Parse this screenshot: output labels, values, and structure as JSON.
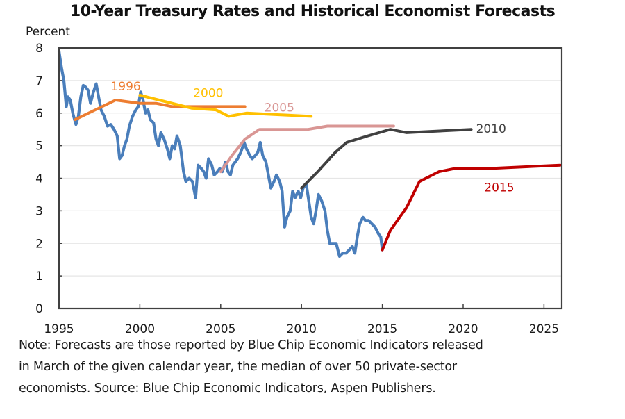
{
  "chart_data": {
    "type": "line",
    "title": "10-Year Treasury Rates and Historical Economist Forecasts",
    "xlabel": "",
    "ylabel": "Percent",
    "xlim": [
      1995,
      2026.1
    ],
    "ylim": [
      0,
      8
    ],
    "x_ticks": [
      1995,
      2000,
      2005,
      2010,
      2015,
      2020,
      2025
    ],
    "y_ticks": [
      0,
      1,
      2,
      3,
      4,
      5,
      6,
      7,
      8
    ],
    "grid": "horizontal",
    "legend": "inline labels",
    "series": [
      {
        "name": "10-Year Treasury Rate",
        "color": "#4A7EBB",
        "label": "",
        "points": [
          [
            1995.0,
            7.9
          ],
          [
            1995.15,
            7.4
          ],
          [
            1995.3,
            7.0
          ],
          [
            1995.45,
            6.2
          ],
          [
            1995.55,
            6.5
          ],
          [
            1995.7,
            6.4
          ],
          [
            1995.85,
            6.0
          ],
          [
            1996.05,
            5.65
          ],
          [
            1996.2,
            5.9
          ],
          [
            1996.35,
            6.5
          ],
          [
            1996.5,
            6.85
          ],
          [
            1996.65,
            6.8
          ],
          [
            1996.8,
            6.7
          ],
          [
            1996.95,
            6.3
          ],
          [
            1997.1,
            6.6
          ],
          [
            1997.3,
            6.9
          ],
          [
            1997.45,
            6.5
          ],
          [
            1997.6,
            6.1
          ],
          [
            1997.8,
            5.9
          ],
          [
            1998.0,
            5.6
          ],
          [
            1998.2,
            5.65
          ],
          [
            1998.4,
            5.5
          ],
          [
            1998.6,
            5.3
          ],
          [
            1998.75,
            4.6
          ],
          [
            1998.9,
            4.7
          ],
          [
            1999.05,
            5.0
          ],
          [
            1999.2,
            5.2
          ],
          [
            1999.35,
            5.6
          ],
          [
            1999.55,
            5.9
          ],
          [
            1999.75,
            6.1
          ],
          [
            1999.9,
            6.2
          ],
          [
            2000.05,
            6.65
          ],
          [
            2000.2,
            6.4
          ],
          [
            2000.35,
            6.0
          ],
          [
            2000.5,
            6.1
          ],
          [
            2000.65,
            5.8
          ],
          [
            2000.85,
            5.7
          ],
          [
            2001.0,
            5.2
          ],
          [
            2001.15,
            5.0
          ],
          [
            2001.3,
            5.4
          ],
          [
            2001.5,
            5.2
          ],
          [
            2001.7,
            4.9
          ],
          [
            2001.85,
            4.6
          ],
          [
            2002.0,
            5.0
          ],
          [
            2002.15,
            4.9
          ],
          [
            2002.3,
            5.3
          ],
          [
            2002.5,
            5.0
          ],
          [
            2002.7,
            4.2
          ],
          [
            2002.85,
            3.9
          ],
          [
            2003.05,
            4.0
          ],
          [
            2003.25,
            3.9
          ],
          [
            2003.45,
            3.4
          ],
          [
            2003.6,
            4.4
          ],
          [
            2003.8,
            4.3
          ],
          [
            2003.95,
            4.2
          ],
          [
            2004.1,
            4.0
          ],
          [
            2004.25,
            4.6
          ],
          [
            2004.45,
            4.4
          ],
          [
            2004.6,
            4.1
          ],
          [
            2004.8,
            4.2
          ],
          [
            2004.95,
            4.3
          ],
          [
            2005.1,
            4.2
          ],
          [
            2005.3,
            4.5
          ],
          [
            2005.45,
            4.2
          ],
          [
            2005.6,
            4.1
          ],
          [
            2005.75,
            4.4
          ],
          [
            2005.9,
            4.5
          ],
          [
            2006.05,
            4.6
          ],
          [
            2006.25,
            4.8
          ],
          [
            2006.45,
            5.1
          ],
          [
            2006.6,
            4.9
          ],
          [
            2006.8,
            4.7
          ],
          [
            2006.95,
            4.6
          ],
          [
            2007.15,
            4.7
          ],
          [
            2007.3,
            4.8
          ],
          [
            2007.45,
            5.1
          ],
          [
            2007.6,
            4.7
          ],
          [
            2007.8,
            4.5
          ],
          [
            2007.95,
            4.1
          ],
          [
            2008.1,
            3.7
          ],
          [
            2008.3,
            3.9
          ],
          [
            2008.45,
            4.1
          ],
          [
            2008.65,
            3.9
          ],
          [
            2008.8,
            3.6
          ],
          [
            2008.95,
            2.5
          ],
          [
            2009.1,
            2.8
          ],
          [
            2009.3,
            3.0
          ],
          [
            2009.45,
            3.6
          ],
          [
            2009.6,
            3.4
          ],
          [
            2009.8,
            3.6
          ],
          [
            2009.95,
            3.4
          ],
          [
            2010.1,
            3.7
          ],
          [
            2010.3,
            3.8
          ],
          [
            2010.45,
            3.3
          ],
          [
            2010.6,
            2.8
          ],
          [
            2010.75,
            2.6
          ],
          [
            2010.9,
            3.0
          ],
          [
            2011.05,
            3.5
          ],
          [
            2011.25,
            3.3
          ],
          [
            2011.45,
            3.0
          ],
          [
            2011.6,
            2.4
          ],
          [
            2011.75,
            2.0
          ],
          [
            2011.95,
            2.0
          ],
          [
            2012.15,
            2.0
          ],
          [
            2012.35,
            1.6
          ],
          [
            2012.55,
            1.7
          ],
          [
            2012.75,
            1.7
          ],
          [
            2012.95,
            1.8
          ],
          [
            2013.15,
            1.9
          ],
          [
            2013.3,
            1.7
          ],
          [
            2013.45,
            2.2
          ],
          [
            2013.6,
            2.6
          ],
          [
            2013.8,
            2.8
          ],
          [
            2013.95,
            2.7
          ],
          [
            2014.15,
            2.7
          ],
          [
            2014.35,
            2.6
          ],
          [
            2014.55,
            2.5
          ],
          [
            2014.75,
            2.3
          ],
          [
            2014.9,
            2.2
          ],
          [
            2015.0,
            1.8
          ]
        ]
      },
      {
        "name": "1996 forecast",
        "label": "1996",
        "color": "#ED7D31",
        "label_pos": [
          1998.2,
          6.7
        ],
        "points": [
          [
            1996.0,
            5.8
          ],
          [
            1998.5,
            6.4
          ],
          [
            2000.0,
            6.3
          ],
          [
            2001.0,
            6.3
          ],
          [
            2002.0,
            6.2
          ],
          [
            2006.5,
            6.2
          ]
        ]
      },
      {
        "name": "2000 forecast",
        "label": "2000",
        "color": "#FFC000",
        "label_pos": [
          2003.3,
          6.5
        ],
        "points": [
          [
            2000.0,
            6.55
          ],
          [
            2003.2,
            6.15
          ],
          [
            2004.7,
            6.1
          ],
          [
            2005.5,
            5.9
          ],
          [
            2006.6,
            6.0
          ],
          [
            2010.6,
            5.9
          ]
        ]
      },
      {
        "name": "2005 forecast",
        "label": "2005",
        "color": "#D99694",
        "label_pos": [
          2007.7,
          6.05
        ],
        "points": [
          [
            2005.0,
            4.2
          ],
          [
            2005.7,
            4.7
          ],
          [
            2006.5,
            5.2
          ],
          [
            2007.4,
            5.5
          ],
          [
            2010.4,
            5.5
          ],
          [
            2011.6,
            5.6
          ],
          [
            2015.7,
            5.6
          ]
        ]
      },
      {
        "name": "2010 forecast",
        "label": "2010",
        "color": "#404040",
        "label_pos": [
          2020.8,
          5.4
        ],
        "points": [
          [
            2010.0,
            3.7
          ],
          [
            2011.0,
            4.2
          ],
          [
            2012.1,
            4.8
          ],
          [
            2012.8,
            5.1
          ],
          [
            2014.1,
            5.3
          ],
          [
            2015.5,
            5.5
          ],
          [
            2016.5,
            5.4
          ],
          [
            2020.5,
            5.5
          ]
        ]
      },
      {
        "name": "2015 forecast",
        "label": "2015",
        "color": "#C00000",
        "label_pos": [
          2021.3,
          3.6
        ],
        "points": [
          [
            2015.0,
            1.8
          ],
          [
            2015.5,
            2.4
          ],
          [
            2016.5,
            3.1
          ],
          [
            2017.3,
            3.9
          ],
          [
            2018.5,
            4.2
          ],
          [
            2019.5,
            4.3
          ],
          [
            2021.7,
            4.3
          ],
          [
            2026.0,
            4.4
          ]
        ]
      }
    ]
  },
  "note": {
    "lines": [
      "Note: Forecasts are those reported by Blue Chip Economic Indicators released",
      "in March of the given calendar year, the median of over 50 private-sector",
      "economists. Source: Blue Chip Economic Indicators, Aspen Publishers."
    ]
  }
}
